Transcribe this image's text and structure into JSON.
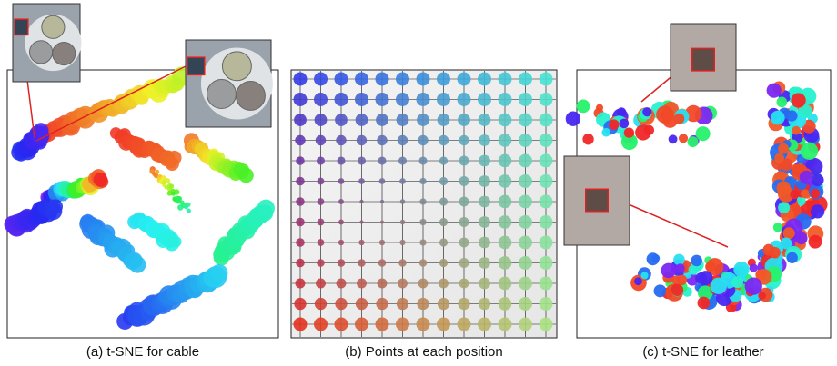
{
  "figure": {
    "panels": [
      {
        "caption": "(a) t-SNE for cable"
      },
      {
        "caption": "(b) Points at each position"
      },
      {
        "caption": "(c) t-SNE for leather"
      }
    ]
  }
}
